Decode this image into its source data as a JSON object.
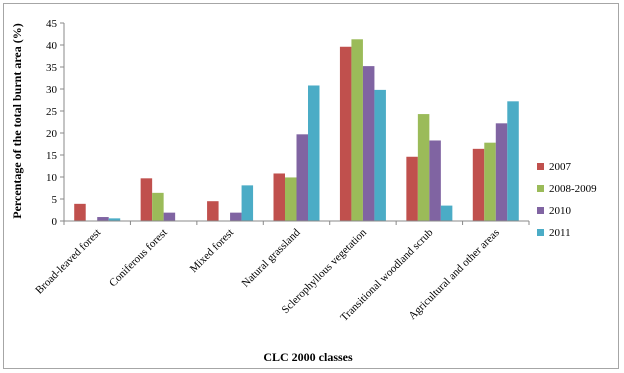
{
  "chart_data": {
    "type": "bar",
    "title": "",
    "xlabel": "CLC 2000 classes",
    "ylabel": "Percentage of the total burnt area (%)",
    "ylim": [
      0,
      45
    ],
    "yticks": [
      0,
      5,
      10,
      15,
      20,
      25,
      30,
      35,
      40,
      45
    ],
    "grid": false,
    "legend_position": "right",
    "categories": [
      "Broad-leaved forest",
      "Coniferous forest",
      "Mixed forest",
      "Natural grassland",
      "Sclerophyllous vegetation",
      "Transitional woodland scrub",
      "Agricultural and other areas"
    ],
    "series": [
      {
        "name": "2007",
        "color": "#c0504d",
        "values": [
          3.9,
          9.7,
          4.5,
          10.8,
          39.6,
          14.6,
          16.4
        ]
      },
      {
        "name": "2008-2009",
        "color": "#9bbb59",
        "values": [
          0.0,
          6.4,
          0.0,
          9.9,
          41.3,
          24.3,
          17.8
        ]
      },
      {
        "name": "2010",
        "color": "#8064a2",
        "values": [
          0.9,
          1.9,
          1.9,
          19.7,
          35.2,
          18.3,
          22.2
        ]
      },
      {
        "name": "2011",
        "color": "#4bacc6",
        "values": [
          0.6,
          0.0,
          8.1,
          30.8,
          29.8,
          3.5,
          27.2
        ]
      }
    ]
  }
}
